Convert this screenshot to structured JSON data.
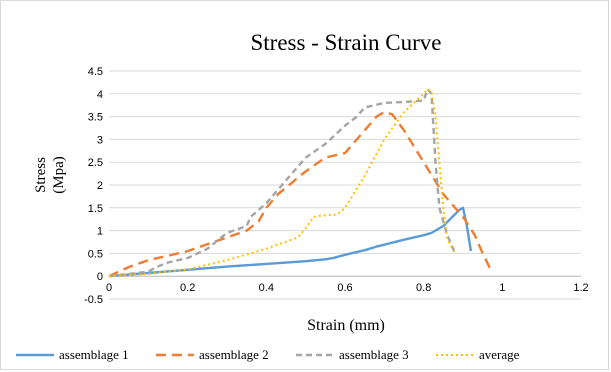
{
  "chart_data": {
    "type": "line",
    "title": "Stress - Strain Curve",
    "xlabel": "Strain (mm)",
    "ylabel_line1": "Stress",
    "ylabel_line2": "(Mpa)",
    "xlim": [
      0,
      1.2
    ],
    "ylim": [
      -0.5,
      4.5
    ],
    "x_ticks": [
      0,
      0.2,
      0.4,
      0.6,
      0.8,
      1,
      1.2
    ],
    "y_ticks": [
      -0.5,
      0,
      0.5,
      1,
      1.5,
      2,
      2.5,
      3,
      3.5,
      4,
      4.5
    ],
    "x_tick_labels": [
      "0",
      "0.2",
      "0.4",
      "0.6",
      "0.8",
      "1",
      "1.2"
    ],
    "y_tick_labels": [
      "-0.5",
      "0",
      "0.5",
      "1",
      "1.5",
      "2",
      "2.5",
      "3",
      "3.5",
      "4",
      "4.5"
    ],
    "grid": "horizontal",
    "legend_position": "bottom",
    "series": [
      {
        "name": "assemblage 1",
        "color": "#5b9bd5",
        "dash": "solid",
        "x": [
          0,
          0.1,
          0.2,
          0.3,
          0.4,
          0.5,
          0.55,
          0.57,
          0.6,
          0.65,
          0.68,
          0.75,
          0.8,
          0.82,
          0.85,
          0.89,
          0.9,
          0.91,
          0.92
        ],
        "y": [
          0,
          0.07,
          0.14,
          0.21,
          0.27,
          0.33,
          0.37,
          0.4,
          0.47,
          0.57,
          0.65,
          0.8,
          0.9,
          0.95,
          1.1,
          1.45,
          1.5,
          1.1,
          0.55
        ]
      },
      {
        "name": "assemblage 2",
        "color": "#ed7d31",
        "dash": "long-dash",
        "x": [
          0,
          0.05,
          0.1,
          0.15,
          0.2,
          0.25,
          0.3,
          0.35,
          0.38,
          0.4,
          0.43,
          0.5,
          0.55,
          0.6,
          0.65,
          0.68,
          0.7,
          0.72,
          0.75,
          0.8,
          0.85,
          0.9,
          0.93,
          0.95,
          0.97
        ],
        "y": [
          0,
          0.2,
          0.35,
          0.45,
          0.55,
          0.7,
          0.85,
          1.0,
          1.2,
          1.5,
          1.8,
          2.3,
          2.6,
          2.7,
          3.2,
          3.5,
          3.6,
          3.55,
          3.2,
          2.5,
          1.8,
          1.3,
          0.9,
          0.5,
          0.15
        ]
      },
      {
        "name": "assemblage 3",
        "color": "#a5a5a5",
        "dash": "dash",
        "x": [
          0,
          0.05,
          0.1,
          0.12,
          0.15,
          0.2,
          0.25,
          0.3,
          0.35,
          0.36,
          0.4,
          0.45,
          0.5,
          0.55,
          0.6,
          0.63,
          0.65,
          0.7,
          0.75,
          0.8,
          0.81,
          0.82,
          0.83,
          0.84,
          0.86,
          0.88
        ],
        "y": [
          0,
          0.05,
          0.1,
          0.2,
          0.3,
          0.4,
          0.6,
          0.95,
          1.1,
          1.3,
          1.6,
          2.1,
          2.6,
          2.9,
          3.3,
          3.5,
          3.7,
          3.8,
          3.82,
          3.85,
          4.1,
          4.0,
          2.5,
          1.5,
          0.9,
          0.5
        ]
      },
      {
        "name": "average",
        "color": "#ffc000",
        "dash": "dot",
        "x": [
          0,
          0.1,
          0.2,
          0.3,
          0.4,
          0.48,
          0.5,
          0.52,
          0.54,
          0.58,
          0.6,
          0.65,
          0.7,
          0.75,
          0.8,
          0.81,
          0.82,
          0.83,
          0.84,
          0.85,
          0.86,
          0.88
        ],
        "y": [
          0,
          0.05,
          0.15,
          0.35,
          0.6,
          0.85,
          1.05,
          1.3,
          1.33,
          1.35,
          1.5,
          2.2,
          3.0,
          3.6,
          4.0,
          4.1,
          4.05,
          3.5,
          2.5,
          1.5,
          0.8,
          0.5
        ]
      }
    ]
  }
}
